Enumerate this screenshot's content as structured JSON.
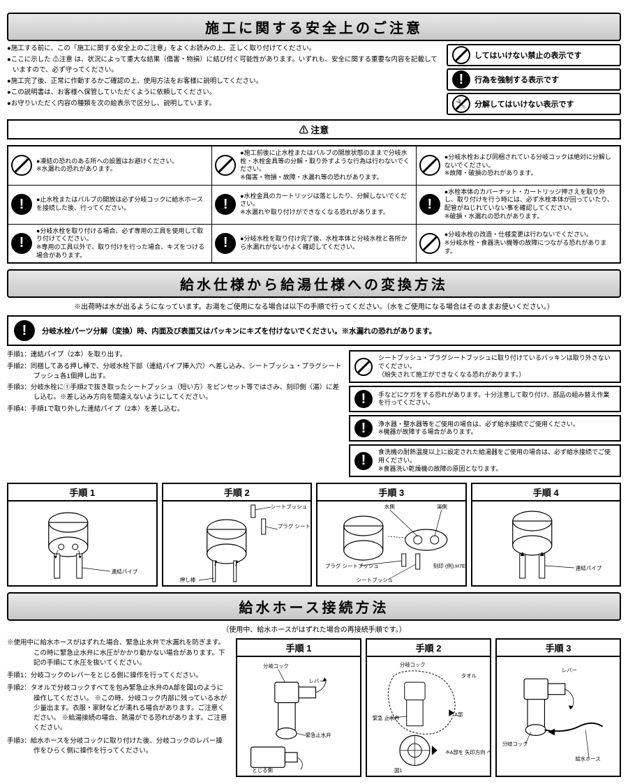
{
  "section1": {
    "title": "施工に関する安全上のご注意",
    "notes": [
      "●施工する前に、この「施工に関する安全上のご注意」をよくお読みの上、正しく取り付けてください。",
      "●ここに示した ⚠注意 は、状況によって重大な結果（傷害・物損）に結び付く可能性があります。いずれも、安全に関する重要な内容を記載していますので、必ず守ってください。",
      "●施工完了後、正常に作動するかご確認の上、使用方法をお客様に説明してください。",
      "●この説明書は、お客様へ保管していただくように依頼してください。",
      "●お守りいただく内容の種類を次の絵表示で区分し、説明しています。"
    ],
    "legends": [
      "してはいけない禁止の表示です",
      "行為を強制する表示です",
      "分解してはいけない表示です"
    ],
    "caution_header": "⚠ 注意",
    "caution_grid": [
      [
        {
          "icon": "prohibit",
          "text": "●凍結の恐れのある所への設置はお避けください。\n※水漏れの恐れがあります。"
        },
        {
          "icon": "prohibit",
          "text": "●施工前後に止水栓またはバルブの開放状態のままで分岐水栓・水栓金具等の分解・取り外すような行為は行わないでください。\n※傷害・物損・故障・水漏れ等の恐れがあります。"
        },
        {
          "icon": "prohibit",
          "text": "●分岐水栓および同梱されている分岐コックは絶対に分解しないでください。\n※故障・破損の恐れがあります。"
        }
      ],
      [
        {
          "icon": "mandatory",
          "text": "●止水栓またはバルブの開放は必ず分岐コックに給水ホースを接続した後、行ってください。"
        },
        {
          "icon": "mandatory",
          "text": "●水栓金具のカートリッジは落としたり、分解しないでください。\n※水漏れや取り付けができなくなる恐れがあります。"
        },
        {
          "icon": "mandatory",
          "text": "●水栓本体のカバーナット・カートリッジ押さえを取り外し、取り付けを行う時には、必ず水栓本体が回っていたり、配管がねじれていない事を確認してください。\n※破損・水漏れの恐れがあります。"
        }
      ],
      [
        {
          "icon": "mandatory",
          "text": "●分岐水栓を取り付ける場合、必ず専用の工具を使用して取り付けてください。\n※専用の工具以外で、取り付けを行った場合、キズをつける場合があります。"
        },
        {
          "icon": "mandatory",
          "text": "●分岐水栓を取り付け完了後、水栓本体と分岐水栓と各所から水漏れがないかよく確認してください。"
        },
        {
          "icon": "prohibit",
          "text": "●分岐水栓の改造・仕様変更は行わないでください。\n※分岐水栓・食器洗い機等の故障につながる恐れがあります。"
        }
      ]
    ]
  },
  "section2": {
    "title": "給水仕様から給湯仕様への変換方法",
    "sub": "※出荷時は水が出るようになっています。お湯をご使用になる場合は以下の手順で行ってください。（水をご使用になる場合はそのままお使いください。）",
    "warn": "分岐水栓パーツ分解（変換）時、内面及び表面又はパッキンにキズを付けないでください。※水漏れの恐れがあります。",
    "left_steps": [
      "手順1：連結パイプ（2本）を取り出す。",
      "手順2：同梱してある押し棒で、分岐水栓下部（連結パイプ挿入穴）へ差し込み、シートブッシュ・プラグシートブッシュ各1個押し出す。",
      "手順3：分岐水栓に①手順2で抜き取ったシートブッシュ（短い方）をピンセット等ではさみ、刻印側（湯）に差し込む。※差し込み方向を間違えないようにしてください。",
      "手順4：手順1で取り外した連結パイプ（2本）を差し込む。"
    ],
    "right_boxes": [
      {
        "icon": "prohibit",
        "text": "シートブッシュ・プラグシートブッシュに取り付けているパッキンは取り外さないでください。\n（紛失されて施工ができなくなる恐れがあります。）"
      },
      {
        "icon": "mandatory",
        "text": "手などにケガをする恐れがあります。十分注意して取り付け、部品の組み替え作業を行ってください。"
      },
      {
        "icon": "mandatory",
        "text": "浄水器・整水器等をご使用の場合は、必ず給水接続でご使用ください。\n※機器が故障する場合があります。"
      },
      {
        "icon": "mandatory",
        "text": "食洗機の耐熱温度以上に設定された給湯器をご使用の場合は、必ず給水接続でご使用ください。\n※食器洗い乾燥機の故障の原因となります。"
      }
    ],
    "step_labels": [
      "手順 1",
      "手順 2",
      "手順 3",
      "手順 4"
    ],
    "diagram_labels": {
      "s1": "連結パイプ",
      "s2a": "シートブッシュ",
      "s2b": "プラグ\nシートブッシュ",
      "s2c": "押し棒",
      "s3a": "水側",
      "s3b": "湯側",
      "s3c": "プラグ\nシートブッシュ",
      "s3d": "シートブッシュ",
      "s3e": "刻印\n(例):H7E",
      "s4": "連結パイプ"
    }
  },
  "section3": {
    "title": "給水ホース接続方法",
    "sub": "（使用中、給水ホースがはずれた場合の再接続手順です。）",
    "left_notes": [
      "※使用中に給水ホースがはずれた場合、緊急止水弁で水漏れを防ぎます。この時に緊急止水弁に水圧がかかり動かない場合があります。下記の手順にて水圧を抜いてください。",
      "手順1：分岐コックのレバーをとじる側に操作を行ってください。",
      "手順2：タオルで分岐コックすべてを包み緊急止水弁のA部を図1のように操作してください。\n※この時、分岐コック内部に残っている水が少量出ます。衣服・家財などが濡れる場合があります。ご注意ください。\n※給湯接続の場合、熱湯がでる恐れがあります。ご注意ください。",
      "手順3：給水ホースを分岐コックに取り付けた後、分岐コックのレバー操作をひらく側に操作を行ってください。"
    ],
    "step_labels": [
      "手順 1",
      "手順 2",
      "手順 3"
    ],
    "diagram_labels": {
      "h1a": "分岐コック",
      "h1b": "レバー",
      "h1c": "緊急止水弁",
      "h1d": "とじる側",
      "h2a": "分岐コック",
      "h2b": "タオル",
      "h2c": "緊急\n止水弁",
      "h2d": "A部",
      "h2e": "図1",
      "h2f": "※A部を\n矢印方向\nへ動かす",
      "h3a": "レバー",
      "h3b": "分岐コック",
      "h3c": "給水ホース"
    }
  },
  "colors": {
    "border": "#000000",
    "gradient_top": "#e8e8e8",
    "gradient_bot": "#c8c8c8"
  }
}
